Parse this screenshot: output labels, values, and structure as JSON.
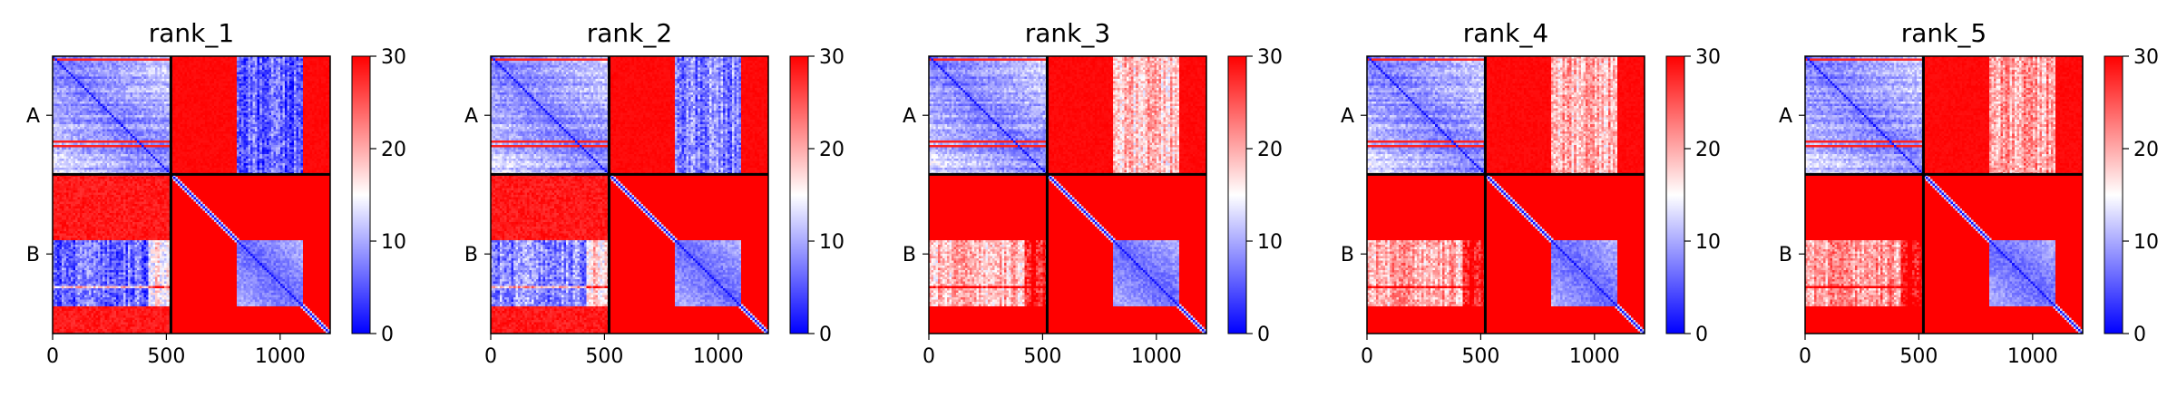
{
  "chart_data": {
    "type": "heatmap",
    "description_colormap": "bwr",
    "colors": {
      "low": "#0000ff",
      "mid": "#ffffff",
      "high": "#ff0000",
      "divider": "#000000"
    },
    "colorbar": {
      "min": 0,
      "max": 30,
      "ticks": [
        0,
        10,
        20,
        30
      ],
      "tick_labels": [
        "0",
        "10",
        "20",
        "30"
      ]
    },
    "x_axis": {
      "range": [
        0,
        1220
      ],
      "ticks": [
        0,
        500,
        1000
      ],
      "tick_labels": [
        "0",
        "500",
        "1000"
      ]
    },
    "chain_labels": [
      "A",
      "B"
    ],
    "chain_boundary": 520,
    "total_length": 1220,
    "panels": [
      {
        "title": "rank_1",
        "offdiag_mean": 18,
        "offdiag_band_mean": 6,
        "offdiag_confident": true
      },
      {
        "title": "rank_2",
        "offdiag_mean": 22,
        "offdiag_band_mean": 8,
        "offdiag_confident": true
      },
      {
        "title": "rank_3",
        "offdiag_mean": 27,
        "offdiag_band_mean": 19,
        "offdiag_confident": false
      },
      {
        "title": "rank_4",
        "offdiag_mean": 28,
        "offdiag_band_mean": 20,
        "offdiag_confident": false
      },
      {
        "title": "rank_5",
        "offdiag_mean": 28,
        "offdiag_band_mean": 21,
        "offdiag_confident": false
      }
    ]
  }
}
